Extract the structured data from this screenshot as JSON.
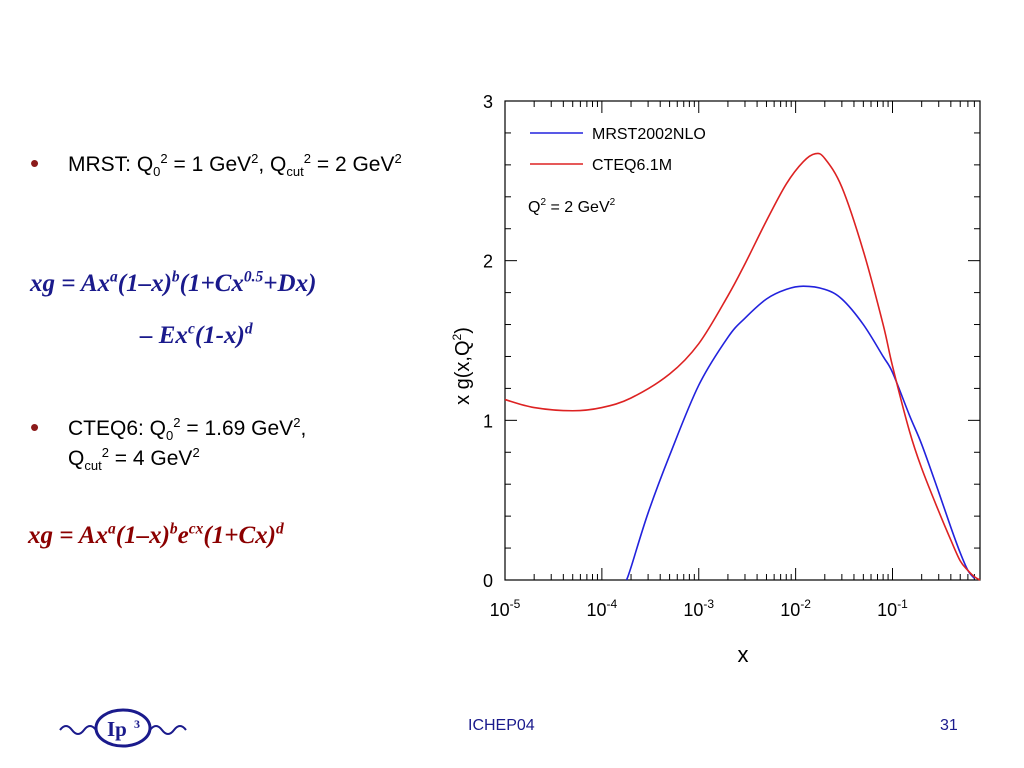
{
  "slide": {
    "bullet1": {
      "pre": "MRST: Q",
      "sub1": "0",
      "sup1": "2",
      "mid1": " = 1 GeV",
      "sup2": "2",
      "mid2": ", Q",
      "sub2": "cut",
      "sup3": "2",
      "mid3": " = 2 GeV",
      "sup4": "2"
    },
    "formula1": {
      "p1": "xg = Ax",
      "s1": "a",
      "p2": "(1–x)",
      "s2": "b",
      "p3": "(1+Cx",
      "s3": "0.5",
      "p4": "+Dx)",
      "line2_p1": "– Ex",
      "line2_s1": "c",
      "line2_p2": "(1-x)",
      "line2_s2": "d"
    },
    "bullet2": {
      "pre": "CTEQ6: Q",
      "sub1": "0",
      "sup1": "2",
      "mid1": " = 1.69 GeV",
      "sup2": "2",
      "mid2": ",",
      "line2_pre": "Q",
      "sub2": "cut",
      "sup3": "2",
      "mid3": " = 4 GeV",
      "sup4": "2"
    },
    "formula2": {
      "p1": "xg = Ax",
      "s1": "a",
      "p2": "(1–x)",
      "s2": "b",
      "p3": "e",
      "s3": "cx",
      "p4": "(1+Cx)",
      "s4": "d"
    },
    "footer": {
      "center": "ICHEP04",
      "page": "31",
      "logo_text": "Ip",
      "logo_sup": "3"
    }
  },
  "colors": {
    "mrst": "#2222dd",
    "cteq": "#dd2222",
    "formula1": "#1a1a8c",
    "formula2": "#8b0000",
    "bullet": "#8b1a1a",
    "footer": "#1a1a8c"
  },
  "chart_data": {
    "type": "line",
    "title": "",
    "xlabel": "x",
    "ylabel_base": "x g(x,Q",
    "ylabel_sup": "2",
    "ylabel_close": ")",
    "xscale": "log",
    "xlim": [
      1e-05,
      0.8
    ],
    "ylim": [
      0,
      3
    ],
    "y_major_ticks": [
      "0",
      "1",
      "2",
      "3"
    ],
    "x_major_ticks": [
      {
        "base": "10",
        "exp": "-5",
        "value": 1e-05
      },
      {
        "base": "10",
        "exp": "-4",
        "value": 0.0001
      },
      {
        "base": "10",
        "exp": "-3",
        "value": 0.001
      },
      {
        "base": "10",
        "exp": "-2",
        "value": 0.01
      },
      {
        "base": "10",
        "exp": "-1",
        "value": 0.1
      }
    ],
    "legend_position": "top-left",
    "annotation": {
      "pre": "Q",
      "sup1": "2",
      "mid": " = 2 GeV",
      "sup2": "2"
    },
    "series": [
      {
        "name": "MRST2002NLO",
        "color": "#2222dd",
        "x": [
          0.00018,
          0.0002,
          0.0003,
          0.0005,
          0.001,
          0.002,
          0.003,
          0.005,
          0.008,
          0.012,
          0.02,
          0.03,
          0.05,
          0.08,
          0.1,
          0.15,
          0.2,
          0.3,
          0.4,
          0.5,
          0.6,
          0.7
        ],
        "values": [
          0.0,
          0.08,
          0.42,
          0.78,
          1.22,
          1.52,
          1.64,
          1.76,
          1.82,
          1.84,
          1.82,
          1.76,
          1.6,
          1.4,
          1.3,
          1.03,
          0.85,
          0.55,
          0.33,
          0.17,
          0.06,
          0.01
        ]
      },
      {
        "name": "CTEQ6.1M",
        "color": "#dd2222",
        "x": [
          1e-05,
          2e-05,
          5e-05,
          0.0001,
          0.0002,
          0.0005,
          0.001,
          0.002,
          0.003,
          0.005,
          0.008,
          0.012,
          0.016,
          0.02,
          0.03,
          0.05,
          0.08,
          0.1,
          0.15,
          0.2,
          0.3,
          0.4,
          0.5,
          0.6,
          0.7,
          0.8
        ],
        "values": [
          1.13,
          1.08,
          1.06,
          1.08,
          1.14,
          1.29,
          1.48,
          1.78,
          1.98,
          2.25,
          2.48,
          2.62,
          2.67,
          2.64,
          2.46,
          2.06,
          1.6,
          1.34,
          0.93,
          0.7,
          0.43,
          0.25,
          0.12,
          0.06,
          0.02,
          0.0
        ]
      }
    ]
  }
}
